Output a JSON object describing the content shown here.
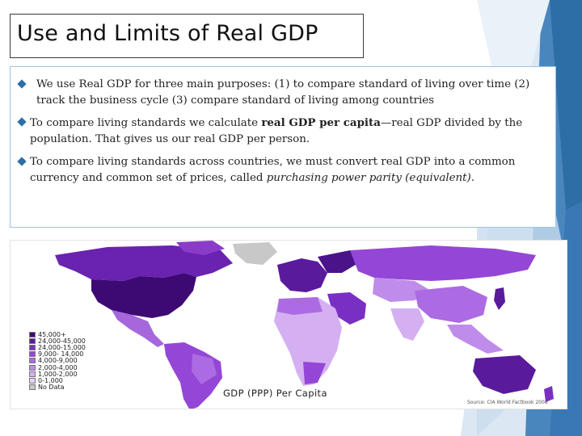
{
  "slide": {
    "title": "Use and Limits of Real GDP",
    "bullets": [
      {
        "text": "We use Real GDP for three main purposes: (1) to compare standard of living over time (2) track the business cycle (3) compare standard of living among countries"
      },
      {
        "pre": "To compare living standards we calculate ",
        "bold": "real GDP per capita",
        "post": "—real GDP divided by the population. That gives us our real GDP per person."
      },
      {
        "pre": "To compare living standards across countries, we must convert real GDP into a common currency and common set of prices, called ",
        "italic": "purchasing power parity (equivalent)",
        "post": "."
      }
    ]
  },
  "map": {
    "caption": "GDP (PPP) Per Capita",
    "source": "Source: CIA World Factbook 2008",
    "legend": [
      {
        "label": "45,000+",
        "color": "#3d0a73"
      },
      {
        "label": "24,000-45,000",
        "color": "#5a1a9c"
      },
      {
        "label": "24,000-15,000",
        "color": "#7a2fc4"
      },
      {
        "label": "9,000- 14,000",
        "color": "#9447d6"
      },
      {
        "label": "4,000-9,000",
        "color": "#ac6be2"
      },
      {
        "label": "2,000-4,000",
        "color": "#c08ceb"
      },
      {
        "label": "1,000-2,000",
        "color": "#d4b0f2"
      },
      {
        "label": "0-1,000",
        "color": "#e6d3f8"
      },
      {
        "label": "No Data",
        "color": "#c8c8c8"
      }
    ]
  },
  "colors": {
    "accent": "#2e6ea6",
    "content_border": "#9dc3e6"
  }
}
